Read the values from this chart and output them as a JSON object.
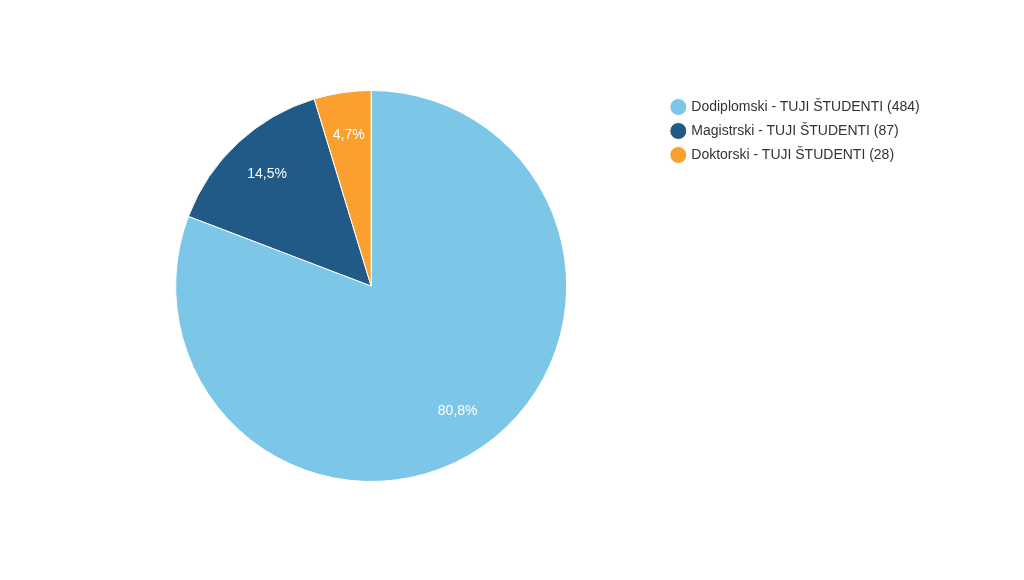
{
  "chart_data": {
    "type": "pie",
    "categories": [
      "Dodiplomski - TUJI ŠTUDENTI (484)",
      "Magistrski - TUJI ŠTUDENTI (87)",
      "Doktorski - TUJI ŠTUDENTI (28)"
    ],
    "values": [
      80.8,
      14.5,
      4.7
    ],
    "colors": [
      "#7cc6e7",
      "#215a86",
      "#fba02e"
    ],
    "value_labels": [
      "80,8%",
      "14,5%",
      "4,7%"
    ],
    "legend": "top right"
  }
}
